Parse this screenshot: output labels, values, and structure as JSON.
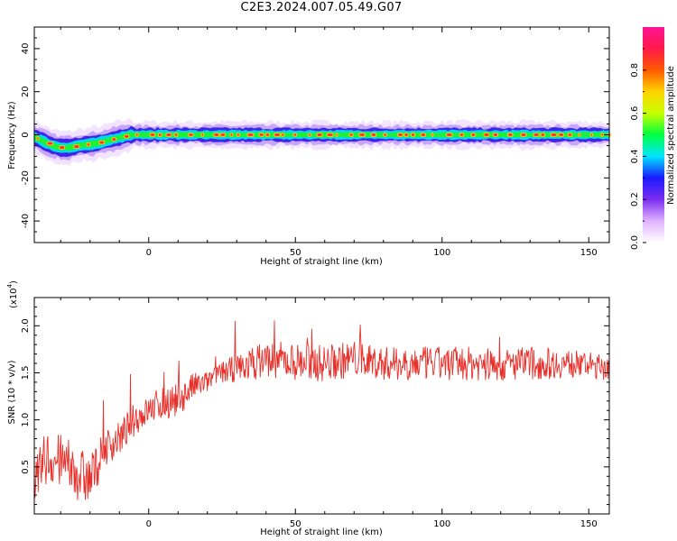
{
  "title": "C2E3.2024.007.05.49.G07",
  "chart_data": [
    {
      "type": "heatmap",
      "xlabel": "Height of straight line (km)",
      "ylabel": "Frequency (Hz)",
      "xlim": [
        -39,
        157
      ],
      "ylim": [
        -50,
        50
      ],
      "xticks": [
        0,
        50,
        100,
        150
      ],
      "yticks": [
        -40,
        -20,
        0,
        20,
        40
      ],
      "ridge": {
        "x": [
          -39,
          -36,
          -33,
          -30,
          -27,
          -24,
          -21,
          -18,
          -15,
          -12,
          -9,
          -6,
          -3,
          0,
          20,
          40,
          60,
          80,
          100,
          120,
          140,
          157
        ],
        "freq": [
          -1,
          -3,
          -5,
          -6,
          -6,
          -5,
          -4.5,
          -4,
          -3,
          -2,
          -1,
          0,
          0,
          0,
          0,
          0,
          0,
          0,
          0,
          0,
          0,
          0
        ]
      },
      "colorbar": {
        "label": "Normalized spectral amplitude",
        "range": [
          0.0,
          1.0
        ],
        "ticks": [
          "0.0",
          "0.2",
          "0.4",
          "0.6",
          "0.8"
        ],
        "colors": [
          "#ffffff",
          "#e0b3ff",
          "#7b2cf0",
          "#1a1aff",
          "#00e5ff",
          "#00ff40",
          "#c8ff00",
          "#ffd400",
          "#ff5a00",
          "#ff1a4a",
          "#ff1493"
        ]
      }
    },
    {
      "type": "line",
      "xlabel": "Height of straight line (km)",
      "ylabel": "SNR (10 * v/v)",
      "multiplier_label": "(x10",
      "multiplier_exp": "4",
      "multiplier_close": ")",
      "xlim": [
        -39,
        157
      ],
      "ylim": [
        0,
        2.3
      ],
      "xticks": [
        0,
        50,
        100,
        150
      ],
      "yticks": [
        0.5,
        1.0,
        1.5,
        2.0
      ],
      "ytick_labels": [
        "0.5",
        "1.0",
        "1.5",
        "2.0"
      ],
      "color": "#e8302a",
      "series": [
        {
          "x": [
            -39,
            -35,
            -30,
            -25,
            -20,
            -15,
            -10,
            -5,
            0,
            5,
            10,
            15,
            20,
            25,
            30,
            35,
            40,
            50,
            60,
            70,
            80,
            90,
            100,
            110,
            120,
            130,
            140,
            150,
            157
          ],
          "values": [
            0.3,
            0.6,
            0.55,
            0.45,
            0.35,
            0.7,
            0.8,
            1.0,
            1.1,
            1.2,
            1.2,
            1.35,
            1.4,
            1.5,
            1.55,
            1.6,
            1.65,
            1.62,
            1.6,
            1.65,
            1.6,
            1.6,
            1.6,
            1.6,
            1.58,
            1.6,
            1.6,
            1.58,
            1.55
          ],
          "noise": [
            0.25,
            0.3,
            0.3,
            0.3,
            0.28,
            0.2,
            0.18,
            0.18,
            0.15,
            0.2,
            0.18,
            0.15,
            0.12,
            0.12,
            0.15,
            0.18,
            0.2,
            0.2,
            0.2,
            0.2,
            0.18,
            0.18,
            0.18,
            0.18,
            0.18,
            0.18,
            0.16,
            0.14,
            0.14
          ]
        }
      ]
    }
  ]
}
